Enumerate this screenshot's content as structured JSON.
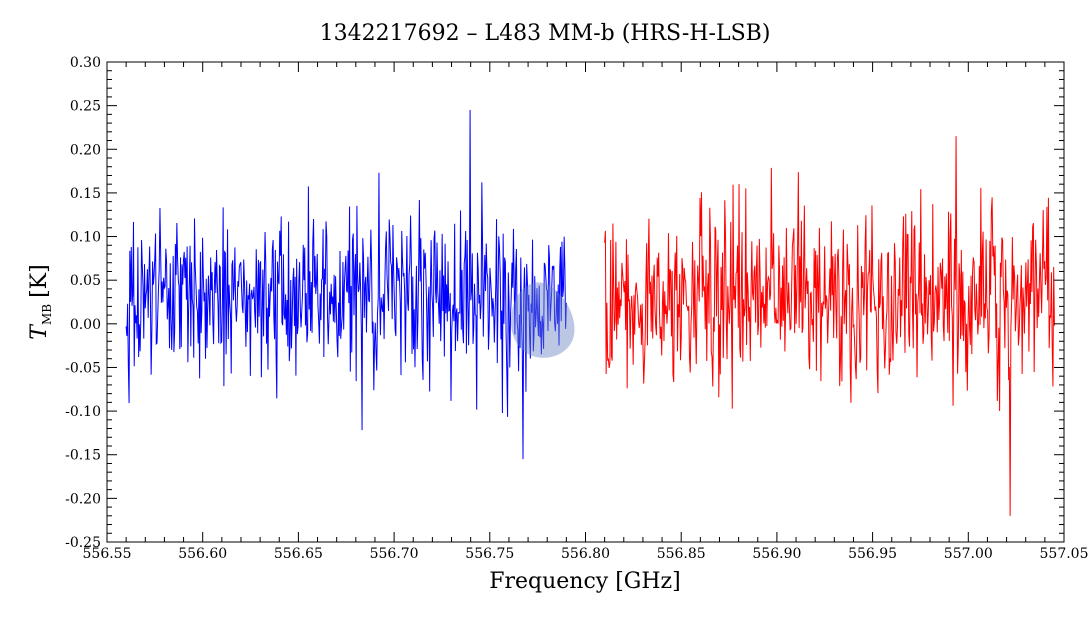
{
  "chart_data": {
    "type": "line",
    "title": "1342217692 – L483 MM-b (HRS-H-LSB)",
    "xlabel": "Frequency [GHz]",
    "ylabel": "T",
    "ylabel_subscript": "MB",
    "ylabel_unit": "[K]",
    "xlim": [
      556.55,
      557.05
    ],
    "ylim": [
      -0.25,
      0.3
    ],
    "xticks": [
      "556.55",
      "556.60",
      "556.65",
      "556.70",
      "556.75",
      "556.80",
      "556.85",
      "556.90",
      "556.95",
      "557.00",
      "557.05"
    ],
    "yticks": [
      "-0.25",
      "-0.20",
      "-0.15",
      "-0.10",
      "-0.05",
      "0.00",
      "0.05",
      "0.10",
      "0.15",
      "0.20",
      "0.25",
      "0.30"
    ],
    "series": [
      {
        "color": "#0000ff",
        "x_range": [
          556.56,
          556.79
        ],
        "points": 600,
        "mean": 0.03,
        "noise_sigma": 0.045,
        "max": 0.245,
        "min": -0.155
      },
      {
        "color": "#ff0000",
        "x_range": [
          556.81,
          557.045
        ],
        "points": 600,
        "mean": 0.03,
        "noise_sigma": 0.05,
        "max": 0.215,
        "min": -0.22
      }
    ],
    "grid": false,
    "overlay_blob": {
      "color": "#6b82c4",
      "opacity": 0.45,
      "x": 556.777,
      "y": 0.0
    }
  }
}
